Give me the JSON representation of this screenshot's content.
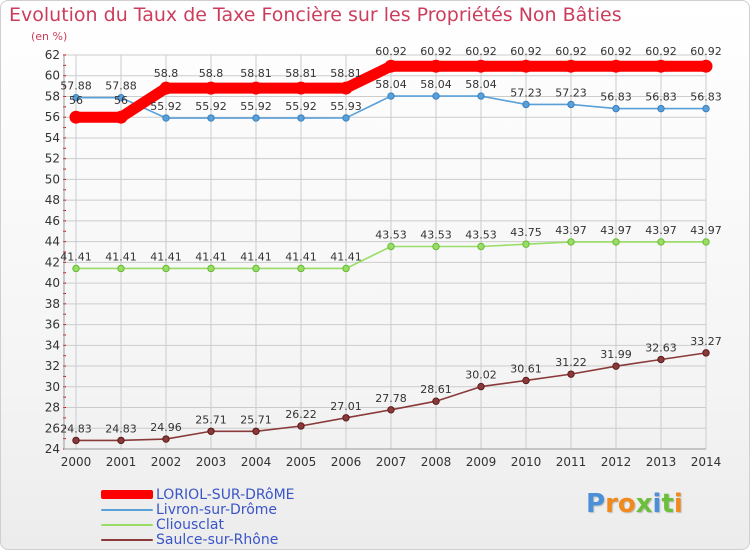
{
  "title": "Evolution du Taux de Taxe Foncière sur les Propriétés Non Bâties",
  "unit_label": "(en %)",
  "brand": "Proxiti",
  "colors": {
    "title": "#cc3d5c",
    "legend_text": "#3a55c8",
    "grid": "#cccccc",
    "axis_tick": "#cc0000"
  },
  "chart_data": {
    "type": "line",
    "x": [
      2000,
      2001,
      2002,
      2003,
      2004,
      2005,
      2006,
      2007,
      2008,
      2009,
      2010,
      2011,
      2012,
      2013,
      2014
    ],
    "ylim": [
      24,
      62
    ],
    "yticks": [
      24,
      26,
      28,
      30,
      32,
      34,
      36,
      38,
      40,
      42,
      44,
      46,
      48,
      50,
      52,
      54,
      56,
      58,
      60,
      62
    ],
    "grid": true,
    "legend_position": "bottom-left",
    "series": [
      {
        "name": "LORIOL-SUR-DRôME",
        "color": "#ff0000",
        "values": [
          56,
          56,
          58.8,
          58.8,
          58.81,
          58.81,
          58.81,
          60.92,
          60.92,
          60.92,
          60.92,
          60.92,
          60.92,
          60.92,
          60.92
        ],
        "labels": [
          "",
          "",
          "58.8",
          "58.8",
          "58.81",
          "58.81",
          "58.81",
          "60.92",
          "60.92",
          "60.92",
          "60.92",
          "60.92",
          "60.92",
          "60.92",
          "60.92"
        ]
      },
      {
        "name": "Livron-sur-Drôme",
        "color": "#5aa0d8",
        "marker": "#3a7fc0",
        "values": [
          57.88,
          57.88,
          55.92,
          55.92,
          55.92,
          55.92,
          55.93,
          58.04,
          58.04,
          58.04,
          57.23,
          57.23,
          56.83,
          56.83,
          56.83
        ],
        "labels": [
          "57.88",
          "57.88",
          "55.92",
          "55.92",
          "55.92",
          "55.92",
          "55.93",
          "58.04",
          "58.04",
          "58.04",
          "57.23",
          "57.23",
          "56.83",
          "56.83",
          "56.83"
        ]
      },
      {
        "name": "Cliousclat",
        "color": "#99dd66",
        "marker": "#66bb33",
        "values": [
          41.41,
          41.41,
          41.41,
          41.41,
          41.41,
          41.41,
          41.41,
          43.53,
          43.53,
          43.53,
          43.75,
          43.97,
          43.97,
          43.97,
          43.97
        ],
        "labels": [
          "41.41",
          "41.41",
          "41.41",
          "41.41",
          "41.41",
          "41.41",
          "41.41",
          "43.53",
          "43.53",
          "43.53",
          "43.75",
          "43.97",
          "43.97",
          "43.97",
          "43.97"
        ]
      },
      {
        "name": "Saulce-sur-Rhône",
        "color": "#8a3a3a",
        "marker": "#5a1a1a",
        "values": [
          24.83,
          24.83,
          24.96,
          25.71,
          25.71,
          26.22,
          27.01,
          27.78,
          28.61,
          30.02,
          30.61,
          31.22,
          31.99,
          32.63,
          33.27
        ],
        "labels": [
          "24.83",
          "24.83",
          "24.96",
          "25.71",
          "25.71",
          "26.22",
          "27.01",
          "27.78",
          "28.61",
          "30.02",
          "30.61",
          "31.22",
          "31.99",
          "32.63",
          "33.27"
        ]
      }
    ],
    "extra_labels": [
      {
        "series": 0,
        "index": 0,
        "text": "56"
      },
      {
        "series": 0,
        "index": 1,
        "text": "56"
      }
    ]
  }
}
